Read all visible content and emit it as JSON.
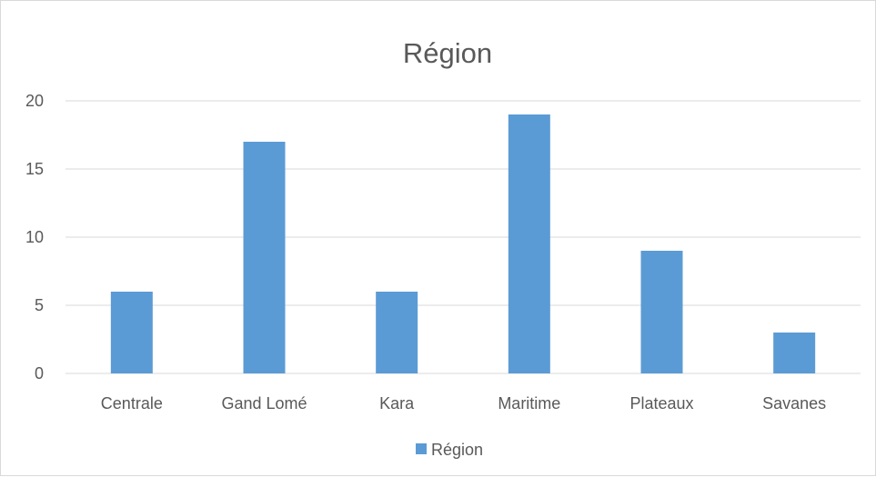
{
  "chart_data": {
    "type": "bar",
    "title": "Région",
    "categories": [
      "Centrale",
      "Gand Lomé",
      "Kara",
      "Maritime",
      "Plateaux",
      "Savanes"
    ],
    "series": [
      {
        "name": "Région",
        "values": [
          6,
          17,
          6,
          19,
          9,
          3
        ]
      }
    ],
    "ylim": [
      0,
      20
    ],
    "yticks": [
      "0",
      "5",
      "10",
      "15",
      "20"
    ],
    "xlabel": "",
    "ylabel": "",
    "grid": true,
    "legend": "bottom",
    "colors": {
      "bar": "#5b9bd5",
      "grid": "#d9d9d9",
      "axis": "#d9d9d9",
      "text": "#595959"
    }
  }
}
